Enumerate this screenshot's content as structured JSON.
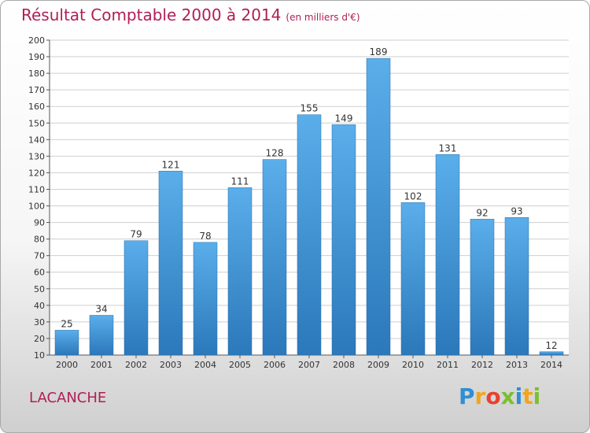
{
  "title": "Résultat Comptable 2000 à 2014",
  "subtitle": "(en milliers d'€)",
  "commune": "LACANCHE",
  "logo": {
    "letters": [
      "P",
      "r",
      "o",
      "x",
      "i",
      "t",
      "i"
    ],
    "colors": [
      "#2e8fd3",
      "#f2a51c",
      "#e9402f",
      "#7cbf2e",
      "#2e8fd3",
      "#f2a51c",
      "#7cbf2e"
    ]
  },
  "colors": {
    "bar_top": "#5aaeea",
    "bar_bottom": "#2b78ba",
    "title": "#b01e56",
    "grid": "#cfcfcf",
    "text": "#333333"
  },
  "chart_data": {
    "type": "bar",
    "categories": [
      "2000",
      "2001",
      "2002",
      "2003",
      "2004",
      "2005",
      "2006",
      "2007",
      "2008",
      "2009",
      "2010",
      "2011",
      "2012",
      "2013",
      "2014"
    ],
    "values": [
      25,
      34,
      79,
      121,
      78,
      111,
      128,
      155,
      149,
      189,
      102,
      131,
      92,
      93,
      12
    ],
    "data_labels": [
      "25",
      "34",
      "79",
      "121",
      "78",
      "111",
      "128",
      "155",
      "149",
      "189",
      "102",
      "131",
      "92",
      "93",
      "12"
    ],
    "y_ticks": [
      "10",
      "20",
      "30",
      "40",
      "50",
      "60",
      "70",
      "80",
      "90",
      "100",
      "110",
      "120",
      "130",
      "140",
      "150",
      "160",
      "170",
      "180",
      "190",
      "200"
    ],
    "ylim": [
      10,
      200
    ],
    "grid": true,
    "legend": "none"
  }
}
